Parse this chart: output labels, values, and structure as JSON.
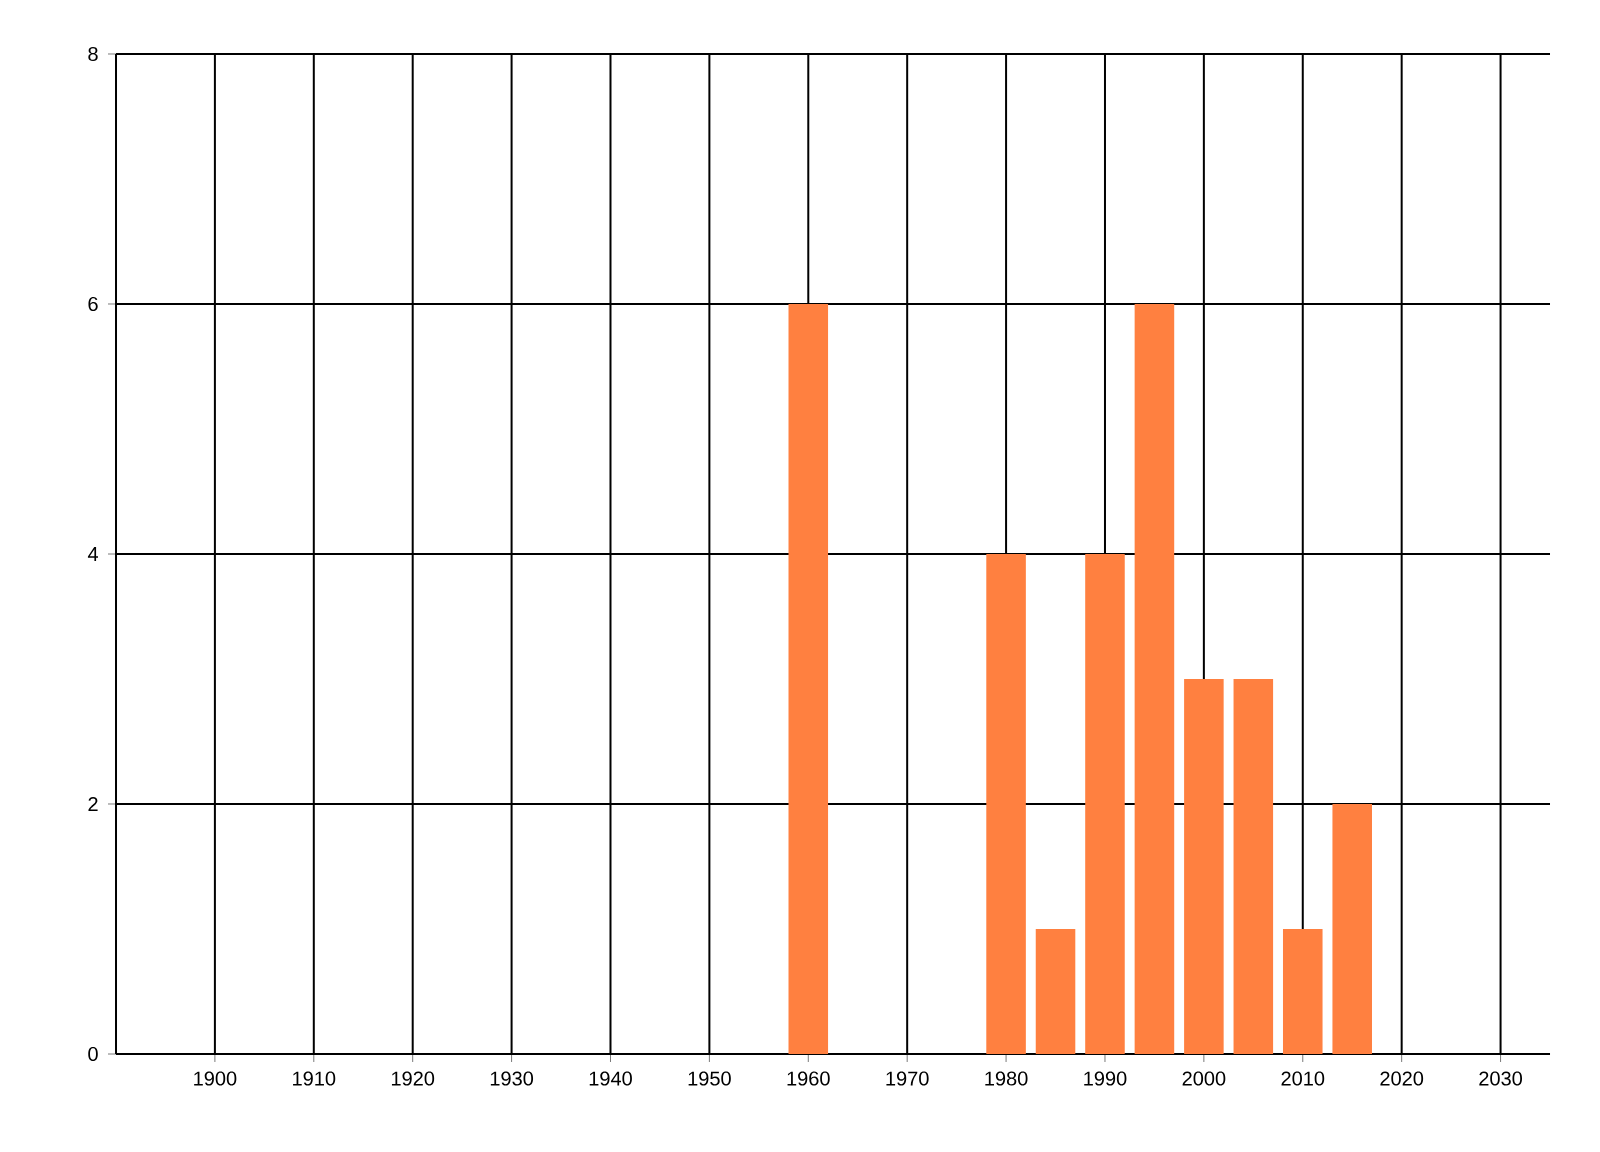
{
  "chart_data": {
    "type": "bar",
    "x": [
      1960,
      1980,
      1985,
      1990,
      1995,
      2000,
      2005,
      2010,
      2015
    ],
    "values": [
      6,
      4,
      1,
      4,
      6,
      3,
      3,
      1,
      2
    ],
    "color": "#ff8040",
    "xlim": [
      1890,
      2035
    ],
    "xticks": [
      1900,
      1910,
      1920,
      1930,
      1940,
      1950,
      1960,
      1970,
      1980,
      1990,
      2000,
      2010,
      2020,
      2030
    ],
    "ylim": [
      0,
      8
    ],
    "yticks": [
      0,
      2,
      4,
      6,
      8
    ],
    "grid": true
  }
}
